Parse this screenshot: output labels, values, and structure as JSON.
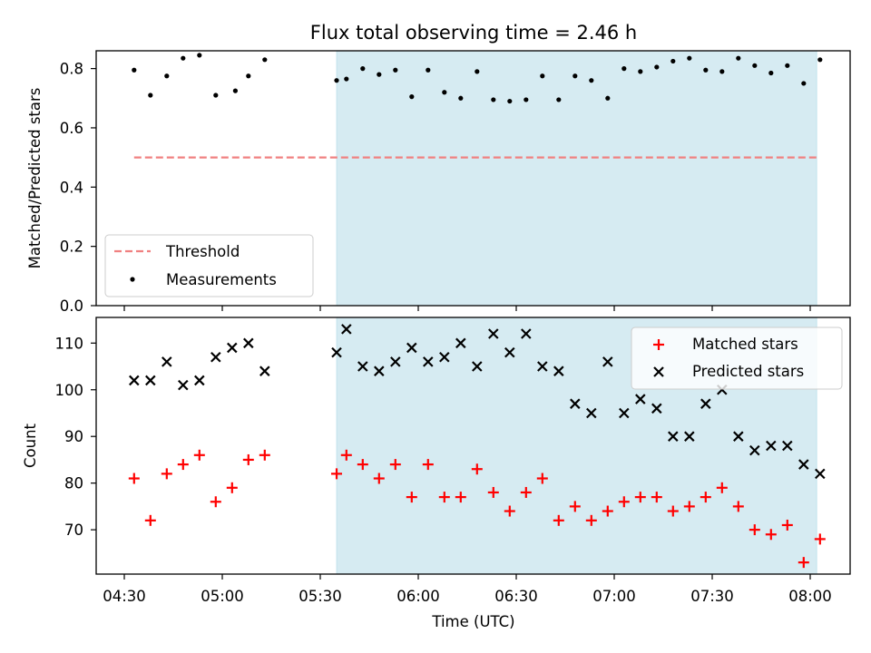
{
  "chart_data": {
    "title": "Flux total observing time = 2.46 h",
    "xlabel": "Time (UTC)",
    "x_ticks": [
      "04:30",
      "05:00",
      "05:30",
      "06:00",
      "06:30",
      "07:00",
      "07:30",
      "08:00"
    ],
    "shaded_interval": {
      "start": "05:35",
      "end": "08:02",
      "color": "#add8e6"
    },
    "panels": [
      {
        "type": "scatter",
        "ylabel": "Matched/Predicted stars",
        "ylim": [
          0,
          0.86
        ],
        "y_ticks": [
          0.0,
          0.2,
          0.4,
          0.6,
          0.8
        ],
        "legend_position": "lower-left",
        "series": [
          {
            "name": "Threshold",
            "kind": "hline",
            "style": "dashed",
            "color": "#f08080",
            "value": 0.5,
            "x_range": [
              "04:33",
              "08:02"
            ]
          },
          {
            "name": "Measurements",
            "kind": "scatter",
            "marker": "dot",
            "color": "#000000",
            "x": [
              "04:33",
              "04:38",
              "04:43",
              "04:48",
              "04:53",
              "04:58",
              "05:04",
              "05:08",
              "05:13",
              "05:35",
              "05:38",
              "05:43",
              "05:48",
              "05:53",
              "05:58",
              "06:03",
              "06:08",
              "06:13",
              "06:18",
              "06:23",
              "06:28",
              "06:33",
              "06:38",
              "06:43",
              "06:48",
              "06:53",
              "06:58",
              "07:03",
              "07:08",
              "07:13",
              "07:18",
              "07:23",
              "07:28",
              "07:33",
              "07:38",
              "07:43",
              "07:48",
              "07:53",
              "07:58",
              "08:03"
            ],
            "y": [
              0.795,
              0.71,
              0.775,
              0.835,
              0.845,
              0.71,
              0.725,
              0.775,
              0.83,
              0.76,
              0.765,
              0.8,
              0.78,
              0.795,
              0.705,
              0.795,
              0.72,
              0.7,
              0.79,
              0.695,
              0.69,
              0.695,
              0.775,
              0.695,
              0.775,
              0.76,
              0.7,
              0.8,
              0.79,
              0.805,
              0.825,
              0.835,
              0.795,
              0.79,
              0.835,
              0.81,
              0.785,
              0.81,
              0.75,
              0.83
            ]
          }
        ]
      },
      {
        "type": "scatter",
        "ylabel": "Count",
        "ylim": [
          60.5,
          115.5
        ],
        "y_ticks": [
          70,
          80,
          90,
          100,
          110
        ],
        "legend_position": "upper-right",
        "series": [
          {
            "name": "Matched stars",
            "marker": "plus",
            "color": "#ff0000",
            "x": [
              "04:33",
              "04:38",
              "04:43",
              "04:48",
              "04:53",
              "04:58",
              "05:03",
              "05:08",
              "05:13",
              "05:35",
              "05:38",
              "05:43",
              "05:48",
              "05:53",
              "05:58",
              "06:03",
              "06:08",
              "06:13",
              "06:18",
              "06:23",
              "06:28",
              "06:33",
              "06:38",
              "06:43",
              "06:48",
              "06:53",
              "06:58",
              "07:03",
              "07:08",
              "07:13",
              "07:18",
              "07:23",
              "07:28",
              "07:33",
              "07:38",
              "07:43",
              "07:48",
              "07:53",
              "07:58",
              "08:03"
            ],
            "y": [
              81,
              72,
              82,
              84,
              86,
              76,
              79,
              85,
              86,
              82,
              86,
              84,
              81,
              84,
              77,
              84,
              77,
              77,
              83,
              78,
              74,
              78,
              81,
              72,
              75,
              72,
              74,
              76,
              77,
              77,
              74,
              75,
              77,
              79,
              75,
              70,
              69,
              71,
              63,
              68
            ]
          },
          {
            "name": "Predicted stars",
            "marker": "x",
            "color": "#000000",
            "x": [
              "04:33",
              "04:38",
              "04:43",
              "04:48",
              "04:53",
              "04:58",
              "05:03",
              "05:08",
              "05:13",
              "05:35",
              "05:38",
              "05:43",
              "05:48",
              "05:53",
              "05:58",
              "06:03",
              "06:08",
              "06:13",
              "06:18",
              "06:23",
              "06:28",
              "06:33",
              "06:38",
              "06:43",
              "06:48",
              "06:53",
              "06:58",
              "07:03",
              "07:08",
              "07:13",
              "07:18",
              "07:23",
              "07:28",
              "07:33",
              "07:38",
              "07:43",
              "07:48",
              "07:53",
              "07:58",
              "08:03"
            ],
            "y": [
              102,
              102,
              106,
              101,
              102,
              107,
              109,
              110,
              104,
              108,
              113,
              105,
              104,
              106,
              109,
              106,
              107,
              110,
              105,
              112,
              108,
              112,
              105,
              104,
              97,
              95,
              106,
              95,
              98,
              96,
              90,
              90,
              97,
              100,
              90,
              87,
              88,
              88,
              84,
              82
            ]
          }
        ]
      }
    ]
  }
}
